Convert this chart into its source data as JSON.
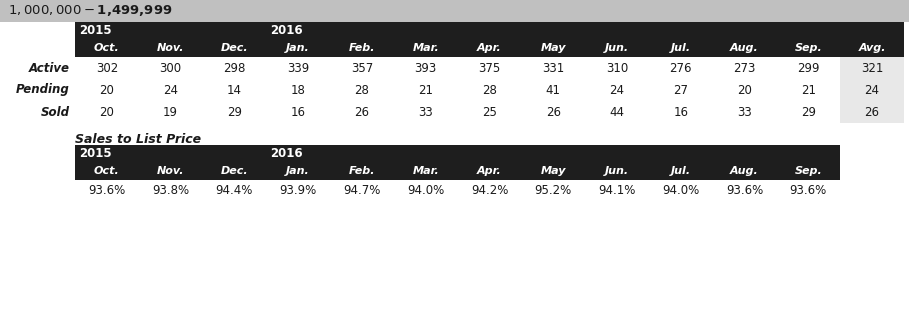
{
  "title": "$1,000,000 - $1,499,999",
  "title_bg": "#c0c0c0",
  "dark_bg": "#1e1e1e",
  "avg_bg": "#e8e8e8",
  "white_bg": "#ffffff",
  "page_bg": "#ffffff",
  "dark_text": "#ffffff",
  "body_text": "#1a1a1a",
  "months": [
    "Oct.",
    "Nov.",
    "Dec.",
    "Jan.",
    "Feb.",
    "Mar.",
    "Apr.",
    "May",
    "Jun.",
    "Jul.",
    "Aug.",
    "Sep.",
    "Avg."
  ],
  "rows": [
    {
      "label": "Active",
      "values": [
        "302",
        "300",
        "298",
        "339",
        "357",
        "393",
        "375",
        "331",
        "310",
        "276",
        "273",
        "299",
        "321"
      ]
    },
    {
      "label": "Pending",
      "values": [
        "20",
        "24",
        "14",
        "18",
        "28",
        "21",
        "28",
        "41",
        "24",
        "27",
        "20",
        "21",
        "24"
      ]
    },
    {
      "label": "Sold",
      "values": [
        "20",
        "19",
        "29",
        "16",
        "26",
        "33",
        "25",
        "26",
        "44",
        "16",
        "33",
        "29",
        "26"
      ]
    }
  ],
  "sales_title": "Sales to List Price",
  "sales_months": [
    "Oct.",
    "Nov.",
    "Dec.",
    "Jan.",
    "Feb.",
    "Mar.",
    "Apr.",
    "May",
    "Jun.",
    "Jul.",
    "Aug.",
    "Sep."
  ],
  "sales_values": [
    "93.6%",
    "93.8%",
    "94.4%",
    "93.9%",
    "94.7%",
    "94.0%",
    "94.2%",
    "95.2%",
    "94.1%",
    "94.0%",
    "93.6%",
    "93.6%"
  ]
}
